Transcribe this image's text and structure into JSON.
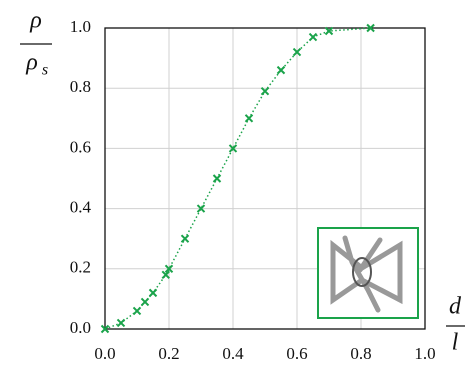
{
  "chart_data": {
    "type": "scatter",
    "y_label": {
      "top": "ρ",
      "bottom": "ρ",
      "bottom_subscript": "s"
    },
    "x_label": {
      "top": "d",
      "bottom": "l"
    },
    "series": [
      {
        "color": "#1aa34a",
        "x": [
          0,
          0.05,
          0.1,
          0.125,
          0.15,
          0.19,
          0.2,
          0.25,
          0.3,
          0.35,
          0.4,
          0.45,
          0.5,
          0.55,
          0.6,
          0.65,
          0.7,
          0.83
        ],
        "values": [
          0,
          0.02,
          0.06,
          0.09,
          0.12,
          0.18,
          0.2,
          0.3,
          0.4,
          0.5,
          0.6,
          0.7,
          0.79,
          0.86,
          0.92,
          0.97,
          0.99,
          1.0
        ]
      }
    ],
    "xlim": [
      0,
      1
    ],
    "ylim": [
      0,
      1
    ],
    "xticks": [
      {
        "value": 0,
        "label": "0.0"
      },
      0.2,
      0.4,
      0.6,
      0.8,
      {
        "value": 1,
        "label": "1.0"
      }
    ],
    "yticks": [
      {
        "value": 0,
        "label": "0.0"
      },
      0.2,
      0.4,
      0.6,
      0.8,
      {
        "value": 1,
        "label": "1.0"
      }
    ],
    "grid": true
  }
}
